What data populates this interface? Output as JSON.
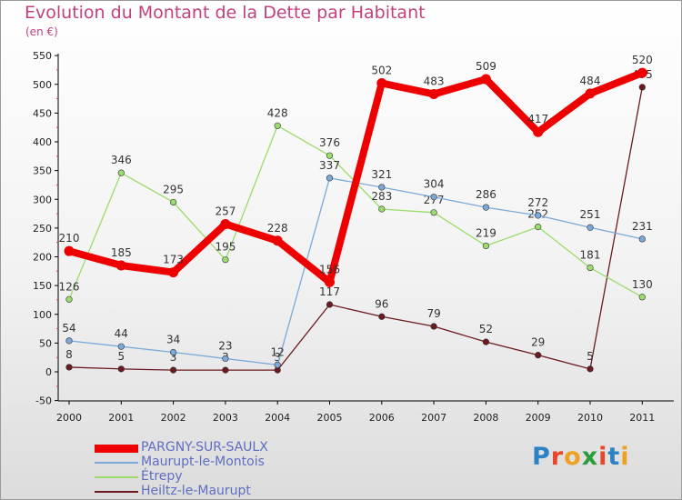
{
  "colors": {
    "title": "#c0417e",
    "legend_text": "#5f6ec0"
  },
  "brand": {
    "name": "Proxiti"
  },
  "chart_data": {
    "type": "line",
    "title": "Evolution du Montant de la Dette par Habitant",
    "subtitle": "(en €)",
    "xlabel": "",
    "ylabel": "",
    "categories": [
      "2000",
      "2001",
      "2002",
      "2003",
      "2004",
      "2005",
      "2006",
      "2007",
      "2008",
      "2009",
      "2010",
      "2011"
    ],
    "y_ticks": [
      "-50",
      "0",
      "50",
      "100",
      "150",
      "200",
      "250",
      "300",
      "350",
      "400",
      "450",
      "500",
      "550"
    ],
    "ylim": [
      -50,
      550
    ],
    "grid": false,
    "legend_position": "bottom-left",
    "series": [
      {
        "name": "Heiltz-le-Maurupt",
        "color": "#6b1a1f",
        "values": [
          8,
          5,
          3,
          3,
          3,
          117,
          96,
          79,
          52,
          29,
          5,
          495
        ],
        "labels": [
          "8",
          "5",
          "3",
          "3",
          "3",
          "117",
          "96",
          "79",
          "52",
          "29",
          "5",
          "495"
        ]
      },
      {
        "name": "Étrepy",
        "color": "#9bdc6c",
        "values": [
          126,
          346,
          295,
          195,
          428,
          376,
          283,
          277,
          219,
          252,
          181,
          130
        ],
        "labels": [
          "126",
          "346",
          "295",
          "195",
          "428",
          "376",
          "283",
          "277",
          "219",
          "252",
          "181",
          "130"
        ]
      },
      {
        "name": "Maurupt-le-Montois",
        "color": "#7ba9d8",
        "values": [
          54,
          44,
          34,
          23,
          12,
          337,
          321,
          304,
          286,
          272,
          251,
          231
        ],
        "labels": [
          "54",
          "44",
          "34",
          "23",
          "12",
          "337",
          "321",
          "304",
          "286",
          "272",
          "251",
          "231"
        ]
      },
      {
        "name": "PARGNY-SUR-SAULX",
        "color": "#ee0000",
        "values": [
          210,
          185,
          173,
          257,
          228,
          156,
          502,
          483,
          509,
          417,
          484,
          520
        ],
        "labels": [
          "210",
          "185",
          "173",
          "257",
          "228",
          "156",
          "502",
          "483",
          "509",
          "417",
          "484",
          "520"
        ]
      }
    ],
    "legend_order": [
      "PARGNY-SUR-SAULX",
      "Maurupt-le-Montois",
      "Étrepy",
      "Heiltz-le-Maurupt"
    ]
  }
}
